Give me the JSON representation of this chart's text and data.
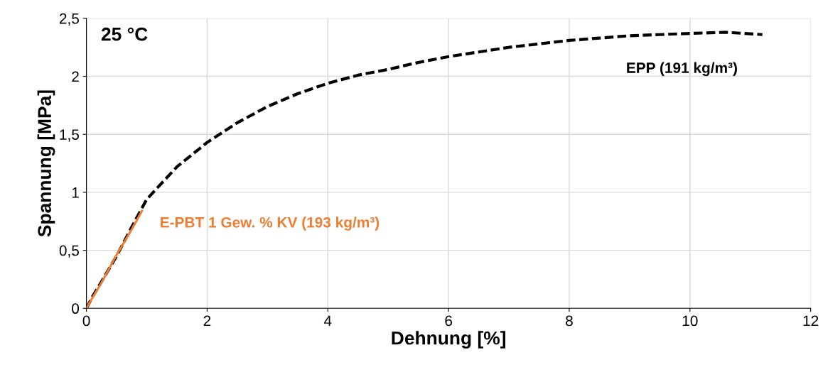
{
  "chart_data": {
    "type": "line",
    "xlabel": "Dehnung [%]",
    "ylabel": "Spannung [MPa]",
    "xlim": [
      0,
      12
    ],
    "xticks": [
      0,
      2,
      4,
      6,
      8,
      10,
      12
    ],
    "ylim": [
      0,
      2.5
    ],
    "yticks": [
      0,
      {
        "value": 0.5,
        "label": "0,5"
      },
      1,
      {
        "value": 1.5,
        "label": "1,5"
      },
      2,
      {
        "value": 2.5,
        "label": "2,5"
      }
    ],
    "grid": true,
    "legend": false,
    "marker": "none",
    "annotations": [
      "25 °C"
    ],
    "series": [
      {
        "name": "EPP (191 kg/m³)",
        "color": "#000000",
        "line_style": "dashed",
        "x": [
          0,
          0.1,
          0.25,
          0.5,
          0.75,
          1,
          1.5,
          2,
          2.5,
          3,
          3.5,
          4,
          4.5,
          5,
          5.5,
          6,
          6.5,
          7,
          7.5,
          8,
          8.5,
          9,
          9.5,
          10,
          10.6,
          11.2
        ],
        "values": [
          0,
          0.1,
          0.23,
          0.45,
          0.7,
          0.94,
          1.22,
          1.43,
          1.6,
          1.74,
          1.85,
          1.94,
          2.01,
          2.06,
          2.12,
          2.17,
          2.21,
          2.25,
          2.28,
          2.31,
          2.33,
          2.35,
          2.36,
          2.37,
          2.38,
          2.36
        ]
      },
      {
        "name": "E-PBT 1 Gew. % KV (193 kg/m³)",
        "color": "#ed7d31",
        "line_style": "solid",
        "x": [
          0,
          0.1,
          0.25,
          0.5,
          0.75,
          0.92
        ],
        "values": [
          0,
          0.09,
          0.22,
          0.46,
          0.68,
          0.84
        ]
      }
    ]
  }
}
